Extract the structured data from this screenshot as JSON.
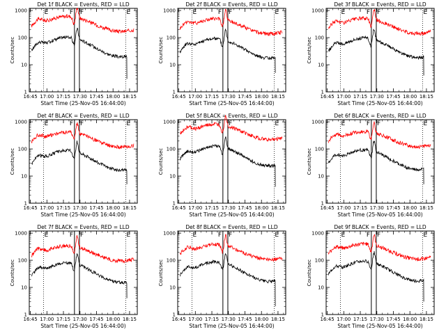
{
  "figure": {
    "common": {
      "xlabel": "Start Time (25-Nov-05 16:44:00)",
      "ylabel": "Counts/sec",
      "x_tick_labels": [
        "16:45",
        "17:00",
        "17:15",
        "17:30",
        "17:45",
        "18:00",
        "18:15"
      ],
      "x_tick_minutes": [
        1,
        16,
        31,
        46,
        61,
        76,
        91
      ],
      "y_tick_labels": [
        "1",
        "10",
        "100",
        "1000"
      ],
      "y_tick_values": [
        1,
        10,
        100,
        1000
      ],
      "x_range_minutes": [
        0,
        98
      ],
      "y_range": [
        1,
        1200
      ],
      "y_scale": "log",
      "marker_labels": [
        "E",
        "F",
        "F",
        "E"
      ],
      "marker_minutes": [
        13,
        41,
        45.5,
        87.5
      ],
      "marker_styles": [
        "dotted",
        "solid",
        "solid",
        "dotted"
      ],
      "series_colors": {
        "events": "#000000",
        "lld": "#ff0000"
      }
    },
    "panels": [
      {
        "title": "Det 1f BLACK = Events, RED = LLD",
        "events_level": 45,
        "events_end": 3,
        "lld_level": 320
      },
      {
        "title": "Det 2f BLACK = Events, RED = LLD",
        "events_level": 40,
        "events_end": 5,
        "lld_level": 260
      },
      {
        "title": "Det 3f BLACK = Events, RED = LLD",
        "events_level": 42,
        "events_end": 4,
        "lld_level": 270
      },
      {
        "title": "Det 4f BLACK = Events, RED = LLD",
        "events_level": 38,
        "events_end": 5,
        "lld_level": 220
      },
      {
        "title": "Det 5f BLACK = Events, RED = LLD",
        "events_level": 55,
        "events_end": 4,
        "lld_level": 420
      },
      {
        "title": "Det 6f BLACK = Events, RED = LLD",
        "events_level": 40,
        "events_end": 5,
        "lld_level": 230
      },
      {
        "title": "Det 7f BLACK = Events, RED = LLD",
        "events_level": 35,
        "events_end": 4,
        "lld_level": 180
      },
      {
        "title": "Det 8f BLACK = Events, RED = LLD",
        "events_level": 38,
        "events_end": 2,
        "lld_level": 200
      },
      {
        "title": "Det 9f BLACK = Events, RED = LLD",
        "events_level": 40,
        "events_end": 3,
        "lld_level": 210
      }
    ]
  }
}
